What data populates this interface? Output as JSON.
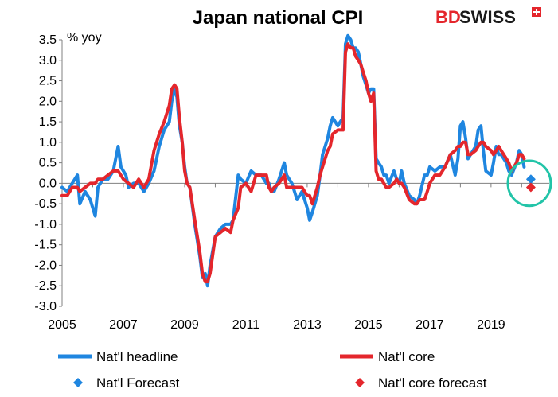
{
  "title": "Japan national CPI",
  "logo": {
    "part1": "BD",
    "part2": "SWISS",
    "color": "#e4262c",
    "text_color": "#1a1a1a"
  },
  "colors": {
    "headline": "#1f86e0",
    "core": "#e4262c",
    "highlight_circle": "#22c4a8"
  },
  "chart_data": {
    "type": "line",
    "title": "Japan national CPI",
    "ylabel": "% yoy",
    "ylim": [
      -3.0,
      3.5
    ],
    "yticks": [
      "3.5",
      "3.0",
      "2.5",
      "2.0",
      "1.5",
      "1.0",
      "0.5",
      "0.0",
      "-0.5",
      "-1.0",
      "-1.5",
      "-2.0",
      "-2.5",
      "-3.0"
    ],
    "xlim": [
      2005,
      2020.9
    ],
    "xticks": [
      "2005",
      "2007",
      "2009",
      "2011",
      "2013",
      "2015",
      "2017",
      "2019"
    ],
    "legend_position": "bottom",
    "series": [
      {
        "name": "Nat'l headline",
        "color": "#1f86e0",
        "points": [
          [
            2005.0,
            -0.1
          ],
          [
            2005.17,
            -0.2
          ],
          [
            2005.33,
            0.0
          ],
          [
            2005.5,
            0.2
          ],
          [
            2005.58,
            -0.5
          ],
          [
            2005.75,
            -0.2
          ],
          [
            2005.92,
            -0.4
          ],
          [
            2006.08,
            -0.8
          ],
          [
            2006.17,
            -0.1
          ],
          [
            2006.33,
            0.1
          ],
          [
            2006.5,
            0.1
          ],
          [
            2006.67,
            0.3
          ],
          [
            2006.83,
            0.9
          ],
          [
            2006.92,
            0.4
          ],
          [
            2007.08,
            0.2
          ],
          [
            2007.17,
            -0.1
          ],
          [
            2007.33,
            0.0
          ],
          [
            2007.5,
            0.0
          ],
          [
            2007.67,
            -0.2
          ],
          [
            2007.83,
            0.0
          ],
          [
            2008.0,
            0.3
          ],
          [
            2008.17,
            0.9
          ],
          [
            2008.33,
            1.3
          ],
          [
            2008.5,
            1.5
          ],
          [
            2008.58,
            2.0
          ],
          [
            2008.67,
            2.3
          ],
          [
            2008.75,
            2.1
          ],
          [
            2008.83,
            1.4
          ],
          [
            2008.92,
            1.0
          ],
          [
            2009.0,
            0.4
          ],
          [
            2009.08,
            0.0
          ],
          [
            2009.17,
            -0.1
          ],
          [
            2009.33,
            -1.0
          ],
          [
            2009.5,
            -1.8
          ],
          [
            2009.58,
            -2.3
          ],
          [
            2009.67,
            -2.2
          ],
          [
            2009.75,
            -2.5
          ],
          [
            2009.83,
            -2.0
          ],
          [
            2010.0,
            -1.3
          ],
          [
            2010.17,
            -1.1
          ],
          [
            2010.33,
            -1.0
          ],
          [
            2010.5,
            -1.0
          ],
          [
            2010.58,
            -0.9
          ],
          [
            2010.75,
            0.2
          ],
          [
            2010.83,
            0.1
          ],
          [
            2011.0,
            0.0
          ],
          [
            2011.17,
            0.3
          ],
          [
            2011.33,
            0.2
          ],
          [
            2011.5,
            0.2
          ],
          [
            2011.67,
            0.0
          ],
          [
            2011.75,
            0.0
          ],
          [
            2011.83,
            -0.2
          ],
          [
            2011.92,
            -0.2
          ],
          [
            2012.08,
            0.1
          ],
          [
            2012.25,
            0.5
          ],
          [
            2012.33,
            0.2
          ],
          [
            2012.5,
            0.0
          ],
          [
            2012.67,
            -0.4
          ],
          [
            2012.83,
            -0.2
          ],
          [
            2013.0,
            -0.6
          ],
          [
            2013.08,
            -0.9
          ],
          [
            2013.17,
            -0.7
          ],
          [
            2013.33,
            -0.3
          ],
          [
            2013.42,
            0.2
          ],
          [
            2013.5,
            0.7
          ],
          [
            2013.67,
            1.1
          ],
          [
            2013.75,
            1.4
          ],
          [
            2013.83,
            1.6
          ],
          [
            2014.0,
            1.4
          ],
          [
            2014.08,
            1.5
          ],
          [
            2014.17,
            1.6
          ],
          [
            2014.25,
            3.4
          ],
          [
            2014.33,
            3.6
          ],
          [
            2014.42,
            3.5
          ],
          [
            2014.5,
            3.3
          ],
          [
            2014.58,
            3.3
          ],
          [
            2014.67,
            3.2
          ],
          [
            2014.75,
            2.9
          ],
          [
            2014.83,
            2.6
          ],
          [
            2014.92,
            2.4
          ],
          [
            2015.0,
            2.2
          ],
          [
            2015.08,
            2.3
          ],
          [
            2015.17,
            2.3
          ],
          [
            2015.25,
            0.6
          ],
          [
            2015.33,
            0.5
          ],
          [
            2015.42,
            0.4
          ],
          [
            2015.5,
            0.2
          ],
          [
            2015.58,
            0.2
          ],
          [
            2015.67,
            0.0
          ],
          [
            2015.83,
            0.3
          ],
          [
            2015.92,
            0.1
          ],
          [
            2016.0,
            0.0
          ],
          [
            2016.08,
            0.3
          ],
          [
            2016.17,
            0.0
          ],
          [
            2016.33,
            -0.3
          ],
          [
            2016.5,
            -0.4
          ],
          [
            2016.58,
            -0.5
          ],
          [
            2016.67,
            -0.3
          ],
          [
            2016.83,
            0.2
          ],
          [
            2016.92,
            0.2
          ],
          [
            2017.0,
            0.4
          ],
          [
            2017.17,
            0.3
          ],
          [
            2017.33,
            0.4
          ],
          [
            2017.5,
            0.4
          ],
          [
            2017.67,
            0.7
          ],
          [
            2017.83,
            0.2
          ],
          [
            2017.92,
            0.6
          ],
          [
            2018.0,
            1.4
          ],
          [
            2018.08,
            1.5
          ],
          [
            2018.17,
            1.1
          ],
          [
            2018.25,
            0.6
          ],
          [
            2018.33,
            0.7
          ],
          [
            2018.5,
            0.9
          ],
          [
            2018.58,
            1.3
          ],
          [
            2018.67,
            1.4
          ],
          [
            2018.75,
            0.8
          ],
          [
            2018.83,
            0.3
          ],
          [
            2019.0,
            0.2
          ],
          [
            2019.08,
            0.5
          ],
          [
            2019.17,
            0.9
          ],
          [
            2019.25,
            0.7
          ],
          [
            2019.33,
            0.7
          ],
          [
            2019.5,
            0.5
          ],
          [
            2019.58,
            0.3
          ],
          [
            2019.67,
            0.2
          ],
          [
            2019.83,
            0.5
          ],
          [
            2019.92,
            0.8
          ],
          [
            2020.0,
            0.7
          ],
          [
            2020.08,
            0.4
          ]
        ]
      },
      {
        "name": "Nat'l core",
        "color": "#e4262c",
        "points": [
          [
            2005.0,
            -0.3
          ],
          [
            2005.17,
            -0.3
          ],
          [
            2005.33,
            -0.1
          ],
          [
            2005.5,
            -0.1
          ],
          [
            2005.58,
            -0.2
          ],
          [
            2005.75,
            -0.1
          ],
          [
            2005.92,
            0.0
          ],
          [
            2006.08,
            0.0
          ],
          [
            2006.17,
            0.1
          ],
          [
            2006.33,
            0.1
          ],
          [
            2006.5,
            0.2
          ],
          [
            2006.67,
            0.3
          ],
          [
            2006.83,
            0.3
          ],
          [
            2007.0,
            0.1
          ],
          [
            2007.17,
            0.0
          ],
          [
            2007.33,
            -0.1
          ],
          [
            2007.5,
            0.1
          ],
          [
            2007.67,
            -0.1
          ],
          [
            2007.83,
            0.1
          ],
          [
            2008.0,
            0.8
          ],
          [
            2008.17,
            1.2
          ],
          [
            2008.33,
            1.5
          ],
          [
            2008.5,
            1.9
          ],
          [
            2008.58,
            2.3
          ],
          [
            2008.67,
            2.4
          ],
          [
            2008.75,
            2.3
          ],
          [
            2008.83,
            1.6
          ],
          [
            2008.92,
            1.0
          ],
          [
            2009.0,
            0.3
          ],
          [
            2009.08,
            0.0
          ],
          [
            2009.17,
            -0.1
          ],
          [
            2009.33,
            -0.9
          ],
          [
            2009.5,
            -1.7
          ],
          [
            2009.58,
            -2.2
          ],
          [
            2009.67,
            -2.4
          ],
          [
            2009.75,
            -2.4
          ],
          [
            2009.83,
            -2.2
          ],
          [
            2010.0,
            -1.3
          ],
          [
            2010.17,
            -1.2
          ],
          [
            2010.33,
            -1.1
          ],
          [
            2010.5,
            -1.2
          ],
          [
            2010.58,
            -0.9
          ],
          [
            2010.75,
            -0.6
          ],
          [
            2010.83,
            -0.1
          ],
          [
            2011.0,
            0.0
          ],
          [
            2011.17,
            -0.2
          ],
          [
            2011.33,
            0.2
          ],
          [
            2011.5,
            0.2
          ],
          [
            2011.67,
            0.2
          ],
          [
            2011.75,
            -0.1
          ],
          [
            2011.83,
            -0.2
          ],
          [
            2011.92,
            -0.1
          ],
          [
            2012.08,
            0.0
          ],
          [
            2012.25,
            0.2
          ],
          [
            2012.33,
            -0.1
          ],
          [
            2012.5,
            -0.1
          ],
          [
            2012.67,
            -0.1
          ],
          [
            2012.83,
            -0.1
          ],
          [
            2013.0,
            -0.3
          ],
          [
            2013.08,
            -0.3
          ],
          [
            2013.17,
            -0.5
          ],
          [
            2013.33,
            -0.1
          ],
          [
            2013.42,
            0.2
          ],
          [
            2013.5,
            0.4
          ],
          [
            2013.67,
            0.8
          ],
          [
            2013.75,
            0.9
          ],
          [
            2013.83,
            1.2
          ],
          [
            2014.0,
            1.3
          ],
          [
            2014.08,
            1.3
          ],
          [
            2014.17,
            1.3
          ],
          [
            2014.25,
            3.2
          ],
          [
            2014.33,
            3.4
          ],
          [
            2014.42,
            3.3
          ],
          [
            2014.5,
            3.3
          ],
          [
            2014.58,
            3.1
          ],
          [
            2014.67,
            3.0
          ],
          [
            2014.75,
            2.9
          ],
          [
            2014.83,
            2.7
          ],
          [
            2014.92,
            2.5
          ],
          [
            2015.0,
            2.2
          ],
          [
            2015.08,
            2.0
          ],
          [
            2015.17,
            2.2
          ],
          [
            2015.25,
            0.3
          ],
          [
            2015.33,
            0.1
          ],
          [
            2015.42,
            0.1
          ],
          [
            2015.5,
            0.0
          ],
          [
            2015.58,
            -0.1
          ],
          [
            2015.67,
            -0.1
          ],
          [
            2015.83,
            0.0
          ],
          [
            2015.92,
            0.1
          ],
          [
            2016.0,
            0.0
          ],
          [
            2016.08,
            0.0
          ],
          [
            2016.17,
            -0.1
          ],
          [
            2016.33,
            -0.4
          ],
          [
            2016.5,
            -0.5
          ],
          [
            2016.58,
            -0.5
          ],
          [
            2016.67,
            -0.4
          ],
          [
            2016.83,
            -0.4
          ],
          [
            2016.92,
            -0.2
          ],
          [
            2017.0,
            0.0
          ],
          [
            2017.17,
            0.2
          ],
          [
            2017.33,
            0.2
          ],
          [
            2017.5,
            0.4
          ],
          [
            2017.67,
            0.7
          ],
          [
            2017.83,
            0.8
          ],
          [
            2017.92,
            0.9
          ],
          [
            2018.0,
            0.9
          ],
          [
            2018.08,
            1.0
          ],
          [
            2018.17,
            1.0
          ],
          [
            2018.25,
            0.7
          ],
          [
            2018.33,
            0.7
          ],
          [
            2018.5,
            0.8
          ],
          [
            2018.58,
            0.9
          ],
          [
            2018.67,
            1.0
          ],
          [
            2018.75,
            1.0
          ],
          [
            2018.83,
            0.9
          ],
          [
            2019.0,
            0.8
          ],
          [
            2019.08,
            0.7
          ],
          [
            2019.17,
            0.8
          ],
          [
            2019.25,
            0.9
          ],
          [
            2019.33,
            0.8
          ],
          [
            2019.5,
            0.6
          ],
          [
            2019.58,
            0.5
          ],
          [
            2019.67,
            0.3
          ],
          [
            2019.83,
            0.5
          ],
          [
            2019.92,
            0.7
          ],
          [
            2020.0,
            0.7
          ],
          [
            2020.08,
            0.6
          ]
        ]
      },
      {
        "name": "Nat'l Forecast",
        "color": "#1f86e0",
        "marker": "diamond",
        "points": [
          [
            2020.3,
            0.1
          ]
        ]
      },
      {
        "name": "Nat'l core forecast",
        "color": "#e4262c",
        "marker": "diamond",
        "points": [
          [
            2020.3,
            -0.1
          ]
        ]
      }
    ],
    "annotations": [
      {
        "type": "ellipse",
        "center": [
          2020.25,
          0.0
        ],
        "rx_years": 0.7,
        "ry_value": 0.55,
        "color": "#22c4a8"
      }
    ]
  }
}
